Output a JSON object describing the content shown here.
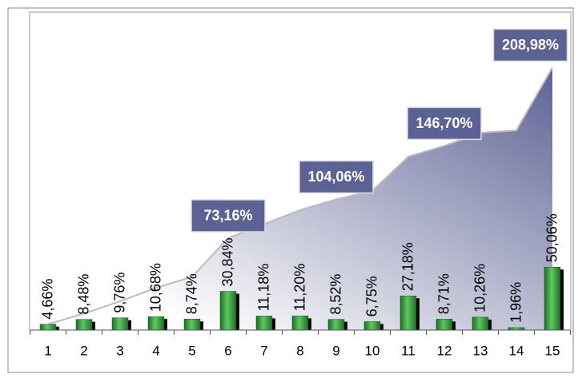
{
  "chart_data": {
    "type": "bar",
    "categories": [
      "1",
      "2",
      "3",
      "4",
      "5",
      "6",
      "7",
      "8",
      "9",
      "10",
      "11",
      "12",
      "13",
      "14",
      "15"
    ],
    "ylim": [
      0,
      215
    ],
    "series": [
      {
        "type": "bar",
        "color": "#2e9a3a",
        "values": [
          4.66,
          8.48,
          9.76,
          10.68,
          8.74,
          30.84,
          11.18,
          11.2,
          8.52,
          6.75,
          27.18,
          8.71,
          10.26,
          1.96,
          50.06
        ],
        "value_labels": [
          "4,66%",
          "8,48%",
          "9,76%",
          "10,68%",
          "8,74%",
          "30,84%",
          "11,18%",
          "11,20%",
          "8,52%",
          "6,75%",
          "27,18%",
          "8,71%",
          "10,26%",
          "1,96%",
          "50,06%"
        ]
      },
      {
        "type": "area",
        "color": "#5d6294",
        "values": [
          4.66,
          13.14,
          22.9,
          33.58,
          42.32,
          73.16,
          84.34,
          95.54,
          104.06,
          110.81,
          137.99,
          146.7,
          156.96,
          158.92,
          208.98
        ],
        "value_labels": [
          null,
          null,
          null,
          null,
          null,
          "73,16%",
          null,
          null,
          "104,06%",
          null,
          null,
          "146,70%",
          null,
          null,
          "208,98%"
        ]
      }
    ]
  }
}
